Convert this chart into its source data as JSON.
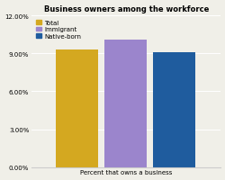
{
  "title": "Business owners among the workforce",
  "categories": [
    "Total",
    "Immigrant",
    "Native-born"
  ],
  "values": [
    0.093,
    0.101,
    0.091
  ],
  "bar_colors": [
    "#D4A820",
    "#9B85CC",
    "#1F5C9E"
  ],
  "xlabel": "Percent that owns a business",
  "ylim": [
    0,
    0.12
  ],
  "yticks": [
    0.0,
    0.03,
    0.06,
    0.09,
    0.12
  ],
  "ytick_labels": [
    "0.00%",
    "3.00%",
    "6.00%",
    "9.00%",
    "12.00%"
  ],
  "background_color": "#f0efe8",
  "title_fontsize": 6.0,
  "legend_fontsize": 5.0,
  "xlabel_fontsize": 5.0,
  "ytick_fontsize": 5.0,
  "bar_width": 0.28,
  "bar_positions": [
    0.3,
    0.62,
    0.94
  ]
}
